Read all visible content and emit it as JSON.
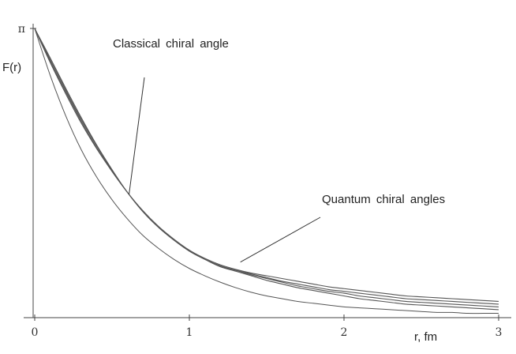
{
  "chart_data": {
    "type": "line",
    "xlabel": "r, fm",
    "ylabel": "F(r)",
    "xlim": [
      0,
      3
    ],
    "ylim": [
      0,
      3.14159
    ],
    "x_ticks": [
      "0",
      "1",
      "2",
      "3"
    ],
    "y_ticks": [
      "π"
    ],
    "grid": false,
    "legend": "none",
    "line_color": "#555555",
    "annotations": [
      {
        "text": "Classical chiral angle",
        "points_to": {
          "x": 0.61,
          "y": 1.33
        }
      },
      {
        "text": "Quantum chiral angles",
        "points_to": {
          "x": 1.33,
          "y": 0.59
        }
      }
    ],
    "x": [
      0,
      0.1,
      0.2,
      0.3,
      0.4,
      0.5,
      0.6,
      0.7,
      0.8,
      0.9,
      1.0,
      1.1,
      1.2,
      1.3,
      1.4,
      1.5,
      1.6,
      1.7,
      1.8,
      1.9,
      2.0,
      2.1,
      2.2,
      2.3,
      2.4,
      2.5,
      2.6,
      2.7,
      2.8,
      2.9,
      3.0
    ],
    "series": [
      {
        "role": "classical",
        "values": [
          3.14,
          2.63,
          2.19,
          1.82,
          1.52,
          1.27,
          1.06,
          0.88,
          0.74,
          0.62,
          0.52,
          0.44,
          0.37,
          0.31,
          0.26,
          0.22,
          0.19,
          0.16,
          0.14,
          0.12,
          0.1,
          0.09,
          0.08,
          0.07,
          0.06,
          0.05,
          0.04,
          0.04,
          0.03,
          0.03,
          0.03
        ]
      },
      {
        "role": "quantum",
        "values": [
          3.14,
          2.82,
          2.49,
          2.17,
          1.87,
          1.6,
          1.35,
          1.14,
          0.97,
          0.83,
          0.71,
          0.62,
          0.54,
          0.49,
          0.44,
          0.39,
          0.35,
          0.31,
          0.28,
          0.25,
          0.22,
          0.19,
          0.17,
          0.15,
          0.13,
          0.12,
          0.11,
          0.1,
          0.09,
          0.08,
          0.07
        ]
      },
      {
        "role": "quantum",
        "values": [
          3.14,
          2.8,
          2.47,
          2.15,
          1.86,
          1.59,
          1.35,
          1.14,
          0.97,
          0.83,
          0.71,
          0.62,
          0.54,
          0.5,
          0.45,
          0.41,
          0.37,
          0.33,
          0.3,
          0.27,
          0.25,
          0.22,
          0.2,
          0.18,
          0.16,
          0.15,
          0.14,
          0.13,
          0.12,
          0.11,
          0.1
        ]
      },
      {
        "role": "quantum",
        "values": [
          3.14,
          2.78,
          2.45,
          2.13,
          1.84,
          1.58,
          1.35,
          1.14,
          0.97,
          0.83,
          0.71,
          0.62,
          0.55,
          0.5,
          0.46,
          0.42,
          0.38,
          0.35,
          0.32,
          0.29,
          0.27,
          0.25,
          0.23,
          0.21,
          0.19,
          0.18,
          0.17,
          0.16,
          0.15,
          0.14,
          0.13
        ]
      },
      {
        "role": "quantum",
        "values": [
          3.14,
          2.77,
          2.43,
          2.11,
          1.83,
          1.58,
          1.35,
          1.15,
          0.98,
          0.84,
          0.72,
          0.63,
          0.56,
          0.51,
          0.47,
          0.44,
          0.41,
          0.38,
          0.35,
          0.32,
          0.3,
          0.28,
          0.26,
          0.24,
          0.22,
          0.21,
          0.2,
          0.19,
          0.18,
          0.17,
          0.16
        ]
      }
    ]
  }
}
